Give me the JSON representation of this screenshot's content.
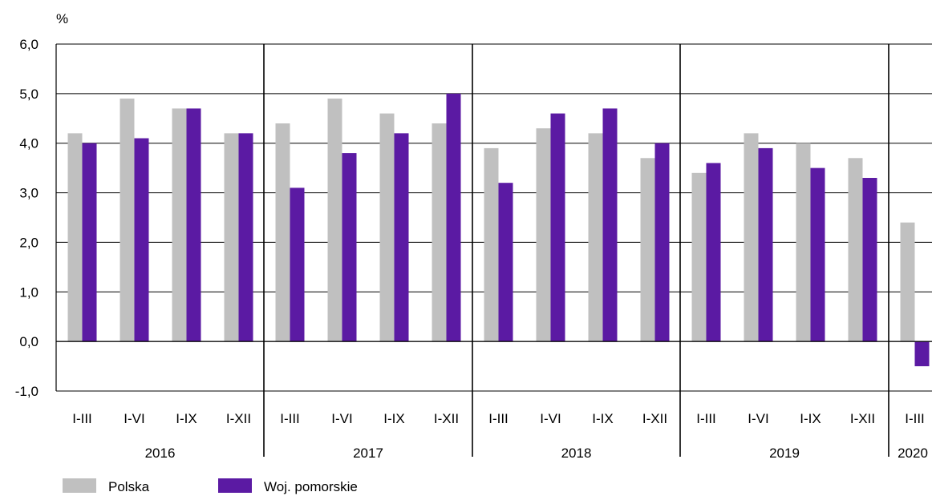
{
  "chart_data": {
    "type": "bar",
    "ylabel": "%",
    "ylim": [
      -1.0,
      6.0
    ],
    "yticks": [
      "6,0",
      "5,0",
      "4,0",
      "3,0",
      "2,0",
      "1,0",
      "0,0",
      "-1,0"
    ],
    "ytick_values": [
      6,
      5,
      4,
      3,
      2,
      1,
      0,
      -1
    ],
    "grid": true,
    "legend_position": "bottom-left",
    "groups": [
      {
        "year": "2016",
        "periods": [
          "I-III",
          "I-VI",
          "I-IX",
          "I-XII"
        ]
      },
      {
        "year": "2017",
        "periods": [
          "I-III",
          "I-VI",
          "I-IX",
          "I-XII"
        ]
      },
      {
        "year": "2018",
        "periods": [
          "I-III",
          "I-VI",
          "I-IX",
          "I-XII"
        ]
      },
      {
        "year": "2019",
        "periods": [
          "I-III",
          "I-VI",
          "I-IX",
          "I-XII"
        ]
      },
      {
        "year": "2020",
        "periods": [
          "I-III"
        ]
      }
    ],
    "series": [
      {
        "name": "Polska",
        "color": "#c0c0c0",
        "values": [
          4.2,
          4.9,
          4.7,
          4.2,
          4.4,
          4.9,
          4.6,
          4.4,
          3.9,
          4.3,
          4.2,
          3.7,
          3.4,
          4.2,
          4.0,
          3.7,
          2.4
        ]
      },
      {
        "name": "Woj. pomorskie",
        "color": "#5b1aa3",
        "values": [
          4.0,
          4.1,
          4.7,
          4.2,
          3.1,
          3.8,
          4.2,
          5.0,
          3.2,
          4.6,
          4.7,
          4.0,
          3.6,
          3.9,
          3.5,
          3.3,
          -0.5
        ]
      }
    ]
  }
}
